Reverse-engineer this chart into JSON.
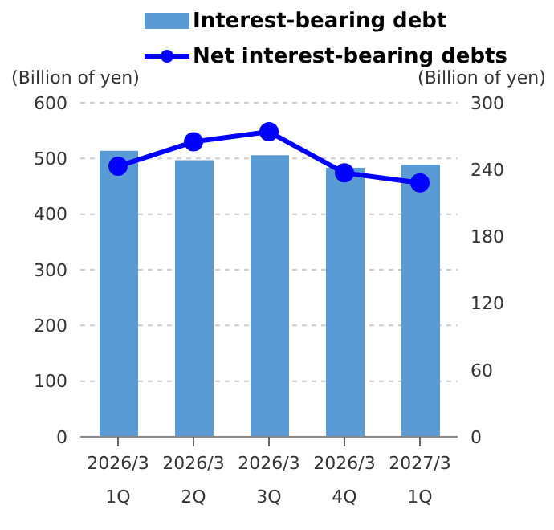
{
  "chart_data": {
    "type": "bar",
    "categories": [
      "2026/3\n1Q",
      "2026/3\n2Q",
      "2026/3\n3Q",
      "2026/3\n4Q",
      "2027/3\n1Q"
    ],
    "series": [
      {
        "name": "Interest-bearing debt",
        "color": "#5b9bd5",
        "values": [
          514,
          497,
          506,
          483,
          489
        ]
      },
      {
        "name": "Net interest-bearing debts",
        "type": "line",
        "axis": "y2",
        "color": "#0000ff",
        "values": [
          243,
          265,
          274,
          237,
          228
        ]
      }
    ],
    "ylabel": "(Billion of yen)",
    "y2label": "(Billion of yen)",
    "ylim": [
      0,
      600
    ],
    "yticks": [
      0,
      100,
      200,
      300,
      400,
      500,
      600
    ],
    "y2lim": [
      0,
      300
    ],
    "y2ticks": [
      0,
      60,
      120,
      180,
      240,
      300
    ],
    "grid": "y",
    "legend": "top",
    "marker": "circle"
  }
}
